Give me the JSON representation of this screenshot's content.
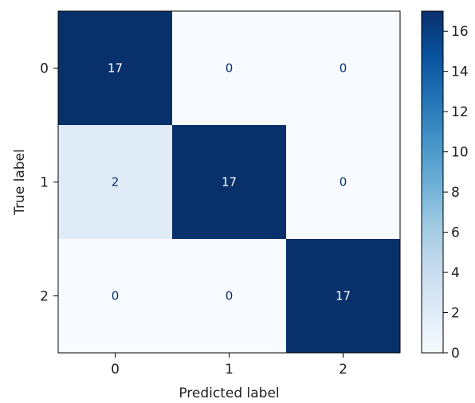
{
  "chart_data": {
    "type": "heatmap",
    "title": "",
    "xlabel": "Predicted label",
    "ylabel": "True label",
    "x_categories": [
      "0",
      "1",
      "2"
    ],
    "y_categories": [
      "0",
      "1",
      "2"
    ],
    "values": [
      [
        17,
        0,
        0
      ],
      [
        2,
        17,
        0
      ],
      [
        0,
        0,
        17
      ]
    ],
    "colorbar": {
      "min": 0,
      "max": 17,
      "ticks": [
        0,
        2,
        4,
        6,
        8,
        10,
        12,
        14,
        16
      ],
      "colormap": "Blues"
    },
    "colors": {
      "low": "#f7fbff",
      "high": "#08306b",
      "text_dark_cell": "#ffffff",
      "text_light_cell": "#08306b"
    }
  }
}
